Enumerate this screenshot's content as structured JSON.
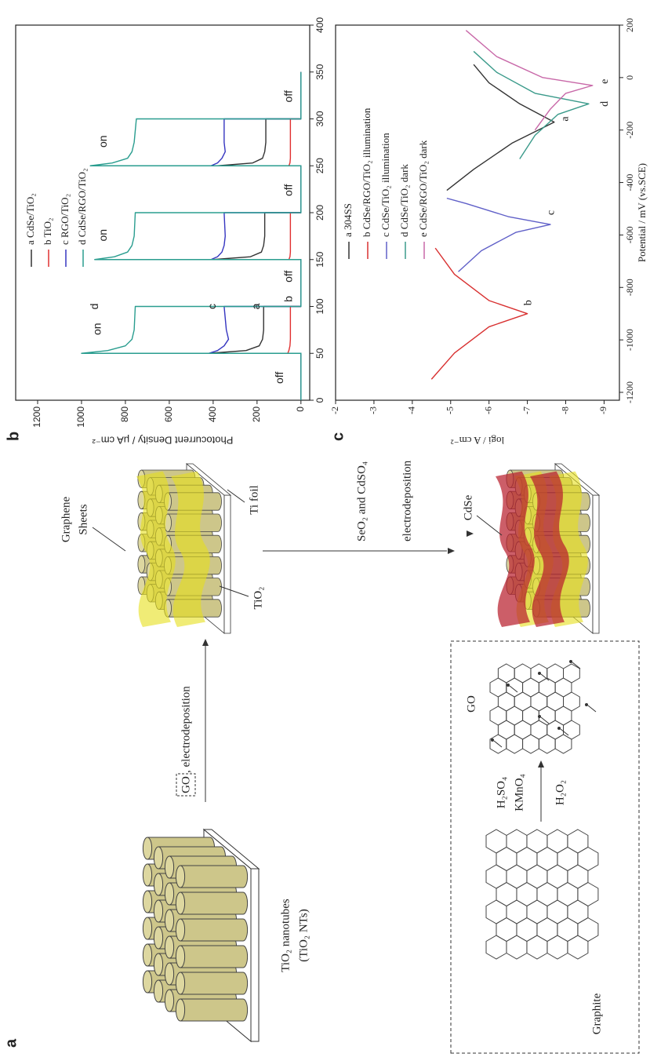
{
  "panel_labels": [
    "a",
    "b",
    "c"
  ],
  "diagram": {
    "tio2_nanotubes": "TiO₂ nanotubes",
    "tio2_nts": "(TiO₂ NTs)",
    "go_step": "GO",
    "go_step_rest": ", electrodeposition",
    "graphene": "Graphene",
    "sheets": "Sheets",
    "ti_foil": "Ti foil",
    "tio2": "TiO₂",
    "precursors": "SeO₂ and CdSO₄",
    "electrodeposition": "electrodeposition",
    "cdse": "CdSe",
    "graphite": "Graphite",
    "h2so4": "H₂SO₄",
    "kmno4": "KMnO₄",
    "h2o2": "H₂O₂",
    "go": "GO"
  },
  "chart_data": [
    {
      "type": "line",
      "ylabel": "Photocurrent Density / μA cm⁻²",
      "x": [
        0,
        50,
        50,
        53,
        58,
        65,
        75,
        100,
        100,
        150,
        150,
        153,
        158,
        165,
        175,
        200,
        200,
        250,
        250,
        253,
        258,
        265,
        275,
        300,
        300,
        350
      ],
      "xlim": [
        0,
        400
      ],
      "xticks": [
        0,
        50,
        100,
        150,
        200,
        250,
        300,
        350,
        400
      ],
      "ylim": [
        -40,
        1300
      ],
      "yticks": [
        0,
        200,
        400,
        600,
        800,
        1000,
        1200
      ],
      "series": [
        {
          "name": "a CdSe/TiO₂",
          "color": "#333333",
          "values": [
            0,
            0,
            420,
            250,
            190,
            175,
            170,
            170,
            0,
            0,
            400,
            230,
            180,
            170,
            165,
            165,
            0,
            0,
            380,
            220,
            175,
            165,
            160,
            160,
            0,
            0
          ]
        },
        {
          "name": "b TiO₂",
          "color": "#e03030",
          "values": [
            0,
            0,
            60,
            55,
            50,
            48,
            48,
            48,
            0,
            0,
            55,
            50,
            48,
            48,
            48,
            48,
            0,
            0,
            55,
            50,
            48,
            48,
            48,
            48,
            0,
            0
          ]
        },
        {
          "name": "c RGO/TiO₂",
          "color": "#3535c0",
          "values": [
            0,
            0,
            420,
            380,
            350,
            330,
            340,
            350,
            0,
            0,
            410,
            380,
            360,
            350,
            345,
            350,
            0,
            0,
            410,
            380,
            360,
            345,
            350,
            350,
            0,
            0
          ]
        },
        {
          "name": "d CdSe/RGO/TiO₂",
          "color": "#2a9d8f",
          "values": [
            0,
            0,
            1000,
            880,
            800,
            770,
            760,
            755,
            0,
            0,
            940,
            850,
            790,
            770,
            760,
            755,
            0,
            0,
            960,
            860,
            790,
            770,
            760,
            750,
            0,
            0
          ]
        }
      ],
      "annotations": [
        "on",
        "on",
        "on",
        "off",
        "off",
        "off",
        "off",
        "d",
        "c",
        "a",
        "b"
      ]
    },
    {
      "type": "line",
      "xlabel": "Potential / mV (vs.SCE)",
      "ylabel": "logi / A cm⁻²",
      "xlim": [
        -1230,
        200
      ],
      "xticks": [
        -1200,
        -1000,
        -800,
        -600,
        -400,
        -200,
        0,
        200
      ],
      "ylim": [
        -9.4,
        -2
      ],
      "yticks": [
        -2,
        -3,
        -4,
        -5,
        -6,
        -7,
        -8,
        -9
      ],
      "series": [
        {
          "name": "a 304SS",
          "color": "#333333",
          "x": [
            -430,
            -350,
            -250,
            -170,
            -100,
            -20,
            50
          ],
          "values": [
            -4.9,
            -5.6,
            -6.6,
            -7.7,
            -6.8,
            -6.0,
            -5.6
          ]
        },
        {
          "name": "b CdSe/RGO/TiO₂ illumination",
          "color": "#d83030",
          "x": [
            -1150,
            -1050,
            -950,
            -900,
            -850,
            -750,
            -650
          ],
          "values": [
            -4.5,
            -5.1,
            -6.0,
            -7.0,
            -6.0,
            -5.1,
            -4.6
          ]
        },
        {
          "name": "c CdSe/TiO₂ illumination",
          "color": "#6060c8",
          "x": [
            -740,
            -660,
            -590,
            -560,
            -530,
            -480,
            -460
          ],
          "values": [
            -5.2,
            -5.8,
            -6.7,
            -7.6,
            -6.5,
            -5.4,
            -4.9
          ]
        },
        {
          "name": "d CdSe/TiO₂ dark",
          "color": "#3a9a8a",
          "x": [
            -310,
            -220,
            -140,
            -100,
            -60,
            20,
            100
          ],
          "values": [
            -6.8,
            -7.2,
            -7.8,
            -8.6,
            -7.2,
            -6.2,
            -5.6
          ]
        },
        {
          "name": "e CdSe/RGO/TiO₂ dark",
          "color": "#c868a8",
          "x": [
            -200,
            -120,
            -60,
            -30,
            0,
            80,
            180
          ],
          "values": [
            -7.2,
            -7.6,
            -8.0,
            -8.7,
            -7.4,
            -6.2,
            -5.4
          ]
        }
      ],
      "annotations": [
        "a",
        "b",
        "c",
        "d",
        "e"
      ]
    }
  ]
}
